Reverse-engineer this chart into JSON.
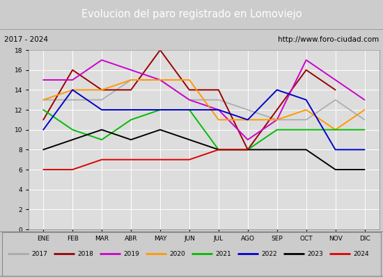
{
  "title": "Evolucion del paro registrado en Lomoviejo",
  "subtitle_left": "2017 - 2024",
  "subtitle_right": "http://www.foro-ciudad.com",
  "months": [
    "ENE",
    "FEB",
    "MAR",
    "ABR",
    "MAY",
    "JUN",
    "JUL",
    "AGO",
    "SEP",
    "OCT",
    "NOV",
    "DIC"
  ],
  "ylim": [
    0,
    18
  ],
  "yticks": [
    0,
    2,
    4,
    6,
    8,
    10,
    12,
    14,
    16,
    18
  ],
  "series": [
    {
      "year": "2017",
      "data": [
        13,
        13,
        13,
        15,
        15,
        13,
        13,
        12,
        11,
        11,
        13,
        11
      ],
      "color": "#aaaaaa",
      "lw": 1.2
    },
    {
      "year": "2018",
      "data": [
        11,
        16,
        14,
        14,
        18,
        14,
        14,
        8,
        12,
        16,
        14,
        null
      ],
      "color": "#990000",
      "lw": 1.4
    },
    {
      "year": "2019",
      "data": [
        15,
        15,
        17,
        16,
        15,
        13,
        12,
        9,
        11,
        17,
        15,
        13
      ],
      "color": "#cc00cc",
      "lw": 1.4
    },
    {
      "year": "2020",
      "data": [
        13,
        14,
        14,
        15,
        15,
        15,
        11,
        11,
        11,
        12,
        10,
        12
      ],
      "color": "#ff9900",
      "lw": 1.4
    },
    {
      "year": "2021",
      "data": [
        12,
        10,
        9,
        11,
        12,
        12,
        8,
        8,
        10,
        10,
        10,
        10
      ],
      "color": "#00bb00",
      "lw": 1.4
    },
    {
      "year": "2022",
      "data": [
        10,
        14,
        12,
        12,
        12,
        12,
        12,
        11,
        14,
        13,
        8,
        8
      ],
      "color": "#0000cc",
      "lw": 1.4
    },
    {
      "year": "2023",
      "data": [
        8,
        9,
        10,
        9,
        10,
        9,
        8,
        8,
        8,
        8,
        6,
        6
      ],
      "color": "#000000",
      "lw": 1.4
    },
    {
      "year": "2024",
      "data": [
        6,
        6,
        7,
        7,
        7,
        7,
        8,
        8,
        null,
        null,
        null,
        null
      ],
      "color": "#dd0000",
      "lw": 1.4
    }
  ],
  "title_bgcolor": "#4466bb",
  "title_fgcolor": "#ffffff",
  "subtitle_bgcolor": "#cccccc",
  "plot_bgcolor": "#dddddd",
  "legend_bgcolor": "#cccccc",
  "grid_color": "#ffffff",
  "fig_bgcolor": "#cccccc"
}
